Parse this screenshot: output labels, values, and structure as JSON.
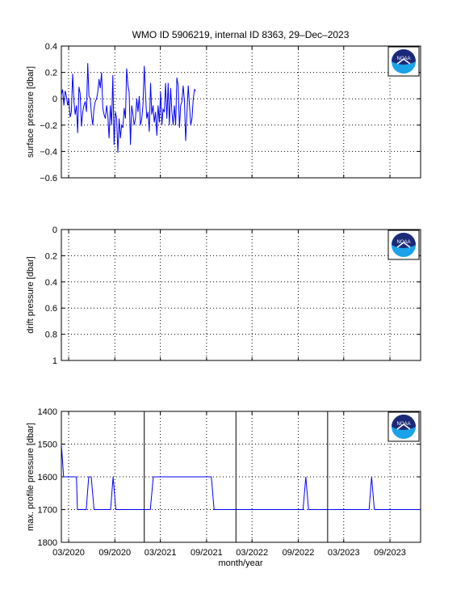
{
  "title": "WMO ID 5906219, internal ID 8363, 29–Dec–2023",
  "xlabel": "month/year",
  "x_tick_labels": [
    "03/2020",
    "09/2020",
    "03/2021",
    "09/2021",
    "03/2022",
    "09/2022",
    "03/2023",
    "09/2023"
  ],
  "x_range": [
    "2020-02",
    "2023-12"
  ],
  "logo": {
    "text": "NOAA",
    "icon": "noaa-logo-icon",
    "colors": {
      "navy": "#1b2a78",
      "cyan": "#1aa3e8"
    }
  },
  "line_color": "#0000ff",
  "chart_data": [
    {
      "type": "line",
      "ylabel": "surface pressure [dbar]",
      "ylim": [
        -0.6,
        0.4
      ],
      "y_reversed": false,
      "y_ticks": [
        -0.6,
        -0.4,
        -0.2,
        0,
        0.2,
        0.4
      ],
      "y_tick_labels": [
        "−0.6",
        "−0.4",
        "−0.2",
        "0",
        "0.2",
        "0.4"
      ],
      "grid": true,
      "sample_interval_days": 5,
      "x_start": "2020-02-01",
      "values": [
        0.03,
        0.07,
        -0.05,
        0.06,
        0.02,
        -0.05,
        0.0,
        -0.14,
        -0.1,
        0.19,
        -0.02,
        -0.12,
        -0.05,
        -0.26,
        0.09,
        0.04,
        -0.21,
        -0.1,
        -0.05,
        -0.02,
        -0.1,
        0.27,
        0.02,
        0.0,
        -0.12,
        -0.2,
        -0.07,
        -0.02,
        0.0,
        0.05,
        0.15,
        0.08,
        0.2,
        -0.07,
        -0.12,
        -0.15,
        -0.05,
        -0.13,
        -0.3,
        -0.05,
        -0.2,
        0.18,
        -0.35,
        -0.1,
        -0.15,
        -0.41,
        -0.15,
        -0.3,
        -0.2,
        -0.22,
        -0.07,
        -0.15,
        0.23,
        0.1,
        0.05,
        -0.35,
        -0.05,
        -0.12,
        -0.2,
        -0.15,
        0.0,
        -0.1,
        0.02,
        -0.2,
        -0.15,
        -0.05,
        0.25,
        0.04,
        -0.15,
        -0.1,
        -0.25,
        0.12,
        -0.12,
        -0.05,
        -0.18,
        -0.1,
        -0.28,
        -0.05,
        -0.18,
        0.05,
        -0.2,
        -0.08,
        -0.1,
        0.12,
        -0.15,
        0.12,
        -0.2,
        0.08,
        -0.1,
        -0.2,
        -0.05,
        -0.2,
        0.16,
        0.1,
        -0.22,
        -0.05,
        -0.02,
        0.1,
        -0.02,
        -0.32,
        -0.1,
        0.1,
        -0.05,
        -0.2,
        -0.15,
        0.0,
        0.07,
        0.06
      ]
    },
    {
      "type": "line",
      "ylabel": "drift pressure [dbar]",
      "ylim": [
        0,
        1
      ],
      "y_reversed": true,
      "y_ticks": [
        0,
        0.2,
        0.4,
        0.6,
        0.8,
        1
      ],
      "y_tick_labels": [
        "0",
        "0.2",
        "0.4",
        "0.6",
        "0.8",
        "1"
      ],
      "grid": true,
      "values": []
    },
    {
      "type": "line",
      "ylabel": "max. profile pressure [dbar]",
      "ylim": [
        1400,
        1800
      ],
      "y_reversed": true,
      "y_ticks": [
        1400,
        1500,
        1600,
        1700,
        1800
      ],
      "y_tick_labels": [
        "1400",
        "1500",
        "1600",
        "1700",
        "1800"
      ],
      "grid": true,
      "vertical_markers": [
        "2020-12-27",
        "2021-12-27",
        "2022-12-27"
      ],
      "points": [
        [
          "2020-02-01",
          1500
        ],
        [
          "2020-02-10",
          1600
        ],
        [
          "2020-04-01",
          1600
        ],
        [
          "2020-04-05",
          1700
        ],
        [
          "2020-05-10",
          1700
        ],
        [
          "2020-05-20",
          1600
        ],
        [
          "2020-05-30",
          1600
        ],
        [
          "2020-06-10",
          1700
        ],
        [
          "2020-08-15",
          1700
        ],
        [
          "2020-08-25",
          1600
        ],
        [
          "2020-09-05",
          1700
        ],
        [
          "2020-12-31",
          1700
        ],
        [
          "2021-01-20",
          1700
        ],
        [
          "2021-02-01",
          1600
        ],
        [
          "2021-09-20",
          1600
        ],
        [
          "2021-10-01",
          1700
        ],
        [
          "2022-09-20",
          1700
        ],
        [
          "2022-10-01",
          1600
        ],
        [
          "2022-10-12",
          1700
        ],
        [
          "2023-06-10",
          1700
        ],
        [
          "2023-06-20",
          1600
        ],
        [
          "2023-07-01",
          1700
        ],
        [
          "2023-12-31",
          1700
        ]
      ]
    }
  ]
}
